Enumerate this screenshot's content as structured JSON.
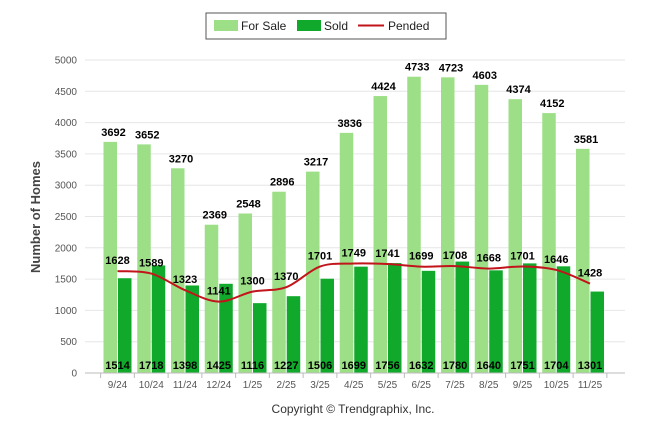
{
  "chart_data": {
    "type": "bar",
    "categories": [
      "9/24",
      "10/24",
      "11/24",
      "12/24",
      "1/25",
      "2/25",
      "3/25",
      "4/25",
      "5/25",
      "6/25",
      "7/25",
      "8/25",
      "9/25",
      "10/25",
      "11/25"
    ],
    "series": [
      {
        "name": "For Sale",
        "type": "bar",
        "color": "#9ddf87",
        "values": [
          3692,
          3652,
          3270,
          2369,
          2548,
          2896,
          3217,
          3836,
          4424,
          4733,
          4723,
          4603,
          4374,
          4152,
          3581
        ]
      },
      {
        "name": "Sold",
        "type": "bar",
        "color": "#11a92b",
        "values": [
          1514,
          1718,
          1398,
          1425,
          1116,
          1227,
          1506,
          1699,
          1756,
          1632,
          1780,
          1640,
          1751,
          1704,
          1301
        ]
      },
      {
        "name": "Pended",
        "type": "line",
        "color": "#c2141b",
        "values": [
          1628,
          1589,
          1323,
          1141,
          1300,
          1370,
          1701,
          1749,
          1741,
          1699,
          1708,
          1668,
          1701,
          1646,
          1428
        ]
      }
    ],
    "ylabel": "Number of Homes",
    "xlabel": "",
    "ylim": [
      0,
      5000
    ],
    "yticks": [
      0,
      500,
      1000,
      1500,
      2000,
      2500,
      3000,
      3500,
      4000,
      4500,
      5000
    ],
    "grid": true,
    "legend_position": "top-center",
    "footer": "Copyright © Trendgraphix, Inc."
  }
}
